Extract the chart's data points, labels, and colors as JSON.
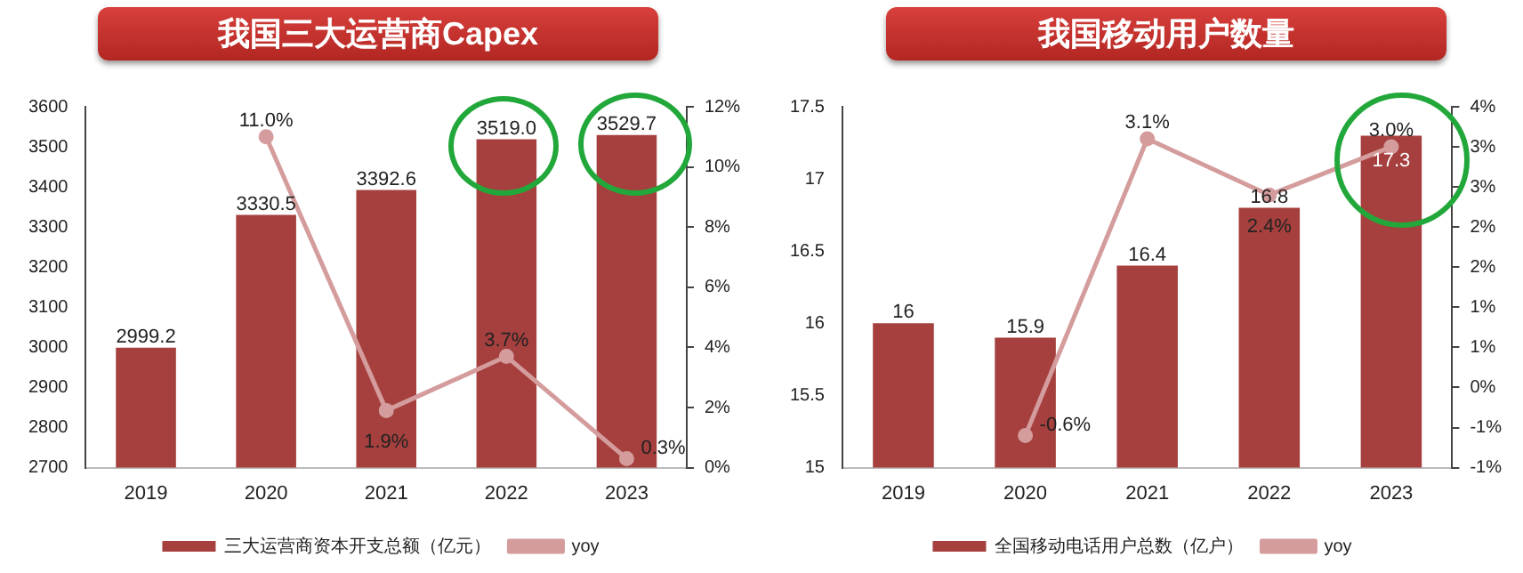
{
  "chart_data": [
    {
      "type": "bar",
      "title": "我国三大运营商Capex",
      "categories": [
        "2019",
        "2020",
        "2021",
        "2022",
        "2023"
      ],
      "series": [
        {
          "name": "三大运营商资本开支总额（亿元）",
          "color": "#a5403e",
          "values": [
            2999.2,
            3330.5,
            3392.6,
            3519.0,
            3529.7
          ],
          "value_labels": [
            "2999.2",
            "3330.5",
            "3392.6",
            "3519.0",
            "3529.7"
          ]
        },
        {
          "name": "yoy",
          "type": "line",
          "axis": "y2",
          "color": "#d49c9c",
          "values": [
            null,
            11.0,
            1.9,
            3.7,
            0.3
          ],
          "value_labels": [
            null,
            "11.0%",
            "1.9%",
            "3.7%",
            "0.3%"
          ]
        }
      ],
      "ylim": [
        2700,
        3600
      ],
      "yticks": [
        2700,
        2800,
        2900,
        3000,
        3100,
        3200,
        3300,
        3400,
        3500,
        3600
      ],
      "y2lim": [
        0,
        12
      ],
      "y2ticks": [
        {
          "value": 0,
          "label": "0%"
        },
        {
          "value": 2,
          "label": "2%"
        },
        {
          "value": 4,
          "label": "4%"
        },
        {
          "value": 6,
          "label": "6%"
        },
        {
          "value": 8,
          "label": "8%"
        },
        {
          "value": 10,
          "label": "10%"
        },
        {
          "value": 12,
          "label": "12%"
        }
      ],
      "legend": "bottom",
      "marker": "circle",
      "grid": false
    },
    {
      "type": "bar",
      "title": "我国移动用户数量",
      "categories": [
        "2019",
        "2020",
        "2021",
        "2022",
        "2023"
      ],
      "series": [
        {
          "name": "全国移动电话用户总数（亿户）",
          "color": "#a5403e",
          "values": [
            16,
            15.9,
            16.4,
            16.8,
            17.3
          ],
          "value_labels": [
            "16",
            "15.9",
            "16.4",
            "16.8",
            "17.3"
          ]
        },
        {
          "name": "yoy",
          "type": "line",
          "axis": "y2",
          "color": "#d49c9c",
          "values": [
            null,
            -0.6,
            3.1,
            2.4,
            3.0
          ],
          "value_labels": [
            null,
            "-0.6%",
            "3.1%",
            "2.4%",
            "3.0%"
          ]
        }
      ],
      "ylim": [
        15,
        17.5
      ],
      "yticks": [
        15,
        15.5,
        16,
        16.5,
        17,
        17.5
      ],
      "y2lim": [
        -1,
        3.5
      ],
      "y2ticks": [
        {
          "value": -1,
          "label": "-1%"
        },
        {
          "value": -0.5,
          "label": "-1%"
        },
        {
          "value": 0,
          "label": "0%"
        },
        {
          "value": 0.5,
          "label": "1%"
        },
        {
          "value": 1,
          "label": "1%"
        },
        {
          "value": 1.5,
          "label": "2%"
        },
        {
          "value": 2,
          "label": "2%"
        },
        {
          "value": 2.5,
          "label": "3%"
        },
        {
          "value": 3,
          "label": "3%"
        },
        {
          "value": 3.5,
          "label": "4%"
        }
      ],
      "legend": "bottom",
      "marker": "circle",
      "grid": false
    }
  ]
}
